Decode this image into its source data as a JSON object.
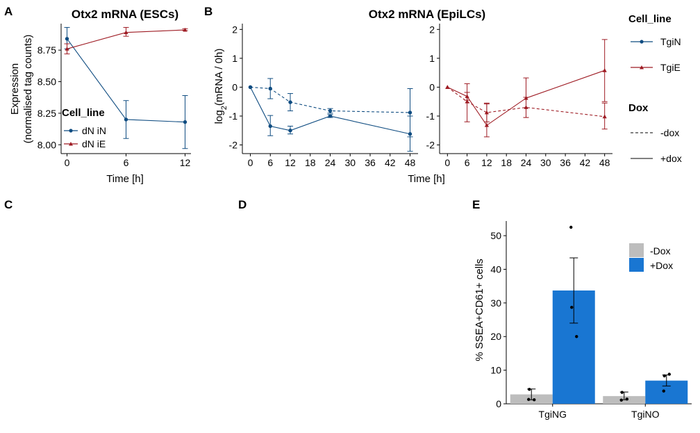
{
  "panels": {
    "a": "A",
    "b": "B",
    "c": "C",
    "d": "D",
    "e": "E"
  },
  "colors": {
    "tgin": "#0f4c81",
    "tgie": "#9e1b23",
    "minus_dox": "#bdbdbd",
    "plus_dox": "#1976d2"
  },
  "chart_data": [
    {
      "type": "line",
      "title": "Otx2 mRNA (ESCs)",
      "xlabel": "Time [h]",
      "ylabel": "Expression",
      "ylabel2": "(normalised tag counts)",
      "xticks": [
        0,
        6,
        12
      ],
      "yticks": [
        8.0,
        8.25,
        8.5,
        8.75
      ],
      "ytick_labels": [
        "8.00",
        "8.25",
        "8.50",
        "8.75"
      ],
      "xlim": [
        -0.6,
        12.6
      ],
      "ylim": [
        7.93,
        8.96
      ],
      "legend": {
        "title": "Cell_line",
        "position": "bottom-left"
      },
      "series": [
        {
          "name": "dN iN",
          "color": "#0f4c81",
          "marker": "circle",
          "x": [
            0,
            6,
            12
          ],
          "y": [
            8.84,
            8.2,
            8.18
          ],
          "err_low": [
            8.76,
            8.05,
            7.97
          ],
          "err_high": [
            8.93,
            8.35,
            8.39
          ]
        },
        {
          "name": "dN iE",
          "color": "#9e1b23",
          "marker": "triangle",
          "x": [
            0,
            6,
            12
          ],
          "y": [
            8.76,
            8.89,
            8.91
          ],
          "err_low": [
            8.72,
            8.86,
            8.905
          ],
          "err_high": [
            8.8,
            8.93,
            8.92
          ]
        }
      ]
    },
    {
      "type": "line",
      "title": "Otx2 mRNA (EpiLCs)",
      "xlabel": "Time [h]",
      "ylabel_main": "log",
      "ylabel_sub": "2",
      "ylabel_rest": "(mRNA / 0h)",
      "xticks": [
        0,
        6,
        12,
        18,
        24,
        30,
        36,
        42,
        48
      ],
      "yticks": [
        -2,
        -1,
        0,
        1,
        2
      ],
      "xlim": [
        -2.4,
        50.4
      ],
      "ylim": [
        -2.3,
        2.2
      ],
      "facets": [
        {
          "cell_line": "TgiN",
          "color": "#0f4c81",
          "marker": "circle",
          "series": [
            {
              "dox": "-dox",
              "x": [
                0,
                6,
                12,
                24,
                48
              ],
              "y": [
                0,
                -0.05,
                -0.52,
                -0.82,
                -0.88
              ],
              "err_low": [
                0,
                -0.4,
                -0.82,
                -0.9,
                -1.72
              ],
              "err_high": [
                0,
                0.3,
                -0.22,
                -0.74,
                -0.05
              ]
            },
            {
              "dox": "+dox",
              "x": [
                0,
                6,
                12,
                24,
                48
              ],
              "y": [
                0,
                -1.35,
                -1.5,
                -1.0,
                -1.62
              ],
              "err_low": [
                0,
                -1.68,
                -1.62,
                -1.05,
                -2.22
              ],
              "err_high": [
                0,
                -0.98,
                -1.35,
                -0.95,
                -1.0
              ]
            }
          ]
        },
        {
          "cell_line": "TgiE",
          "color": "#9e1b23",
          "marker": "triangle",
          "series": [
            {
              "dox": "-dox",
              "x": [
                0,
                6,
                12,
                24,
                48
              ],
              "y": [
                0,
                -0.5,
                -0.88,
                -0.7,
                -1.02
              ],
              "err_low": [
                0,
                -1.2,
                -1.2,
                -1.05,
                -1.45
              ],
              "err_high": [
                0,
                0.12,
                -0.55,
                -0.35,
                -0.55
              ]
            },
            {
              "dox": "+dox",
              "x": [
                0,
                6,
                12,
                24,
                48
              ],
              "y": [
                0,
                -0.32,
                -1.32,
                -0.38,
                0.58
              ],
              "err_low": [
                0,
                -0.45,
                -1.72,
                -1.05,
                -0.5
              ],
              "err_high": [
                0,
                -0.18,
                -0.58,
                0.32,
                1.65
              ]
            }
          ]
        }
      ],
      "legend": {
        "cell_line_title": "Cell_line",
        "cell_lines": [
          "TgiN",
          "TgiE"
        ],
        "dox_title": "Dox",
        "dox_levels": [
          "-dox",
          "+dox"
        ]
      }
    },
    {
      "type": "bar",
      "ylabel": "% SSEA+CD61+ cells",
      "categories": [
        "TgiNG",
        "TgiNO"
      ],
      "yticks": [
        0,
        10,
        20,
        30,
        40,
        50
      ],
      "ylim": [
        0,
        52.5
      ],
      "legend": {
        "position": "top-right"
      },
      "series": [
        {
          "name": "-Dox",
          "color": "#bdbdbd",
          "values": [
            2.8,
            2.3
          ],
          "err_low": [
            1.2,
            1.2
          ],
          "err_high": [
            4.4,
            3.5
          ],
          "points": [
            [
              1.3,
              4.3,
              1.2
            ],
            [
              1.1,
              3.4,
              1.4
            ]
          ]
        },
        {
          "name": "+Dox",
          "color": "#1976d2",
          "values": [
            33.7,
            6.9
          ],
          "err_low": [
            24.0,
            5.3
          ],
          "err_high": [
            43.4,
            8.6
          ],
          "points": [
            [
              52.5,
              28.7,
              20.0
            ],
            [
              3.8,
              8.3,
              8.8
            ]
          ]
        }
      ]
    }
  ]
}
